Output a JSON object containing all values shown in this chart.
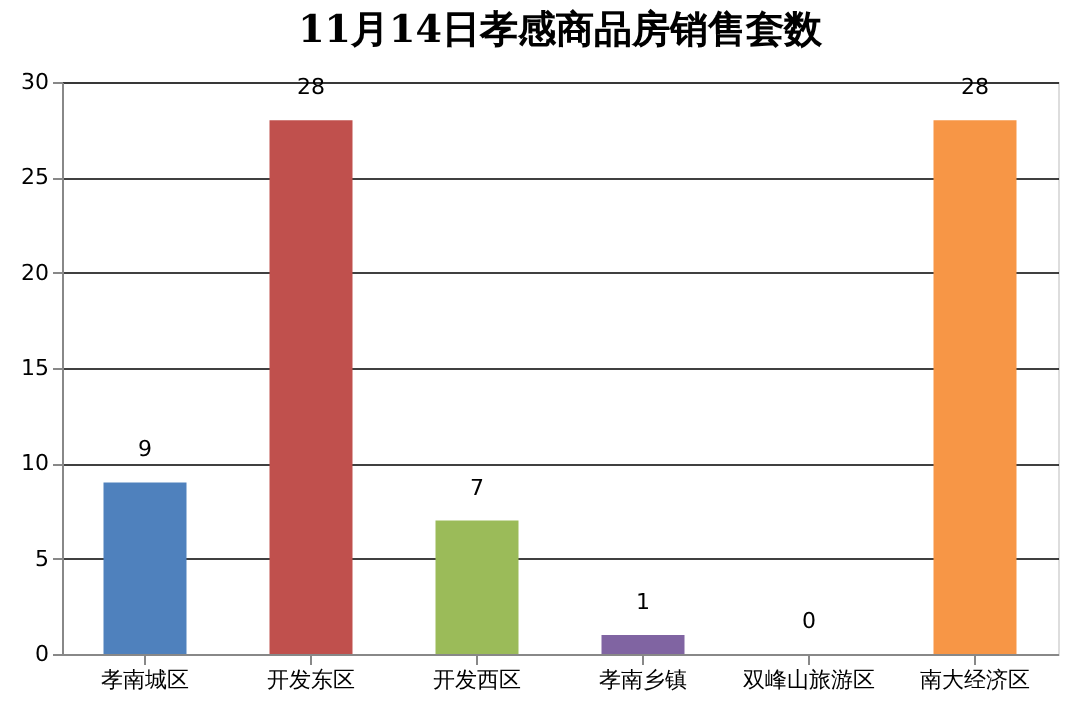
{
  "chart_data": {
    "type": "bar",
    "title": "11月14日孝感商品房销售套数",
    "categories": [
      "孝南城区",
      "开发东区",
      "开发西区",
      "孝南乡镇",
      "双峰山旅游区",
      "南大经济区"
    ],
    "values": [
      9,
      28,
      7,
      1,
      0,
      28
    ],
    "colors": [
      "#4f81bd",
      "#c0504d",
      "#9bbb59",
      "#8064a2",
      "#4bacc6",
      "#f79646"
    ],
    "ylim": [
      0,
      30
    ],
    "yticks": [
      0,
      5,
      10,
      15,
      20,
      25,
      30
    ],
    "grid": "y",
    "data_labels": true
  }
}
